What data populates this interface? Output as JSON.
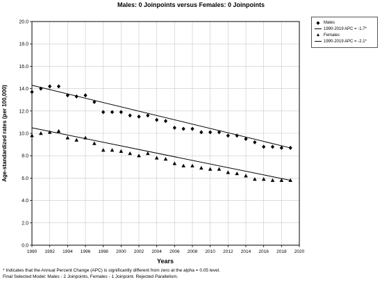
{
  "title": "Males: 0 Joinpoints  versus  Females: 0 Joinpoints",
  "footnote_1": "* Indicates that the Annual Percent Change (APC) is significantly different from zero at the alpha = 0.05 level.",
  "footnote_2": "Final Selected Model: Males - 2 Joinpoints, Females - 1 Joinpoint. Rejected Parallelism.",
  "legend": {
    "males_label": "Males",
    "males_fit": "1990-2019 APC  = -1.7*",
    "females_label": "Females",
    "females_fit": "1990-2019 APC  = -2.1*"
  },
  "chart_data": {
    "type": "scatter",
    "title": "Males: 0 Joinpoints  versus  Females: 0 Joinpoints",
    "xlabel": "Years",
    "ylabel": "Age-standardized rates (per 100,000)",
    "xlim": [
      1990,
      2020
    ],
    "ylim": [
      0,
      20
    ],
    "x_ticks": [
      1990,
      1992,
      1994,
      1996,
      1998,
      2000,
      2002,
      2004,
      2006,
      2008,
      2010,
      2012,
      2014,
      2016,
      2018,
      2020
    ],
    "y_ticks": [
      0,
      2,
      4,
      6,
      8,
      10,
      12,
      14,
      16,
      18,
      20
    ],
    "y_tick_labels": [
      "0.0",
      "2.0",
      "4.0",
      "6.0",
      "8.0",
      "10.0",
      "12.0",
      "14.0",
      "16.0",
      "18.0",
      "20.0"
    ],
    "grid": true,
    "legend_position": "top-right, outside plot",
    "series": [
      {
        "name": "Males",
        "marker": "diamond",
        "color": "#000000",
        "x": [
          1990,
          1991,
          1992,
          1993,
          1994,
          1995,
          1996,
          1997,
          1998,
          1999,
          2000,
          2001,
          2002,
          2003,
          2004,
          2005,
          2006,
          2007,
          2008,
          2009,
          2010,
          2011,
          2012,
          2013,
          2014,
          2015,
          2016,
          2017,
          2018,
          2019
        ],
        "values": [
          13.7,
          14.0,
          14.2,
          14.2,
          13.4,
          13.3,
          13.4,
          12.8,
          11.9,
          11.9,
          11.9,
          11.6,
          11.5,
          11.6,
          11.2,
          11.1,
          10.5,
          10.4,
          10.4,
          10.1,
          10.1,
          10.1,
          9.8,
          9.8,
          9.5,
          9.2,
          8.8,
          8.8,
          8.7,
          8.7
        ],
        "fit": {
          "name": "1990-2019 APC  = -1.7*",
          "start": [
            1990,
            14.3
          ],
          "end": [
            2019,
            8.7
          ],
          "apc": -1.7
        }
      },
      {
        "name": "Females",
        "marker": "triangle",
        "color": "#000000",
        "x": [
          1990,
          1991,
          1992,
          1993,
          1994,
          1995,
          1996,
          1997,
          1998,
          1999,
          2000,
          2001,
          2002,
          2003,
          2004,
          2005,
          2006,
          2007,
          2008,
          2009,
          2010,
          2011,
          2012,
          2013,
          2014,
          2015,
          2016,
          2017,
          2018,
          2019
        ],
        "values": [
          9.8,
          10.0,
          10.1,
          10.2,
          9.6,
          9.4,
          9.6,
          9.1,
          8.5,
          8.5,
          8.4,
          8.2,
          8.0,
          8.2,
          7.8,
          7.7,
          7.3,
          7.1,
          7.1,
          6.9,
          6.8,
          6.8,
          6.5,
          6.4,
          6.2,
          5.9,
          5.9,
          5.8,
          5.8,
          5.8
        ],
        "fit": {
          "name": "1990-2019 APC  = -2.1*",
          "start": [
            1990,
            10.5
          ],
          "end": [
            2019,
            5.8
          ],
          "apc": -2.1
        }
      }
    ]
  }
}
